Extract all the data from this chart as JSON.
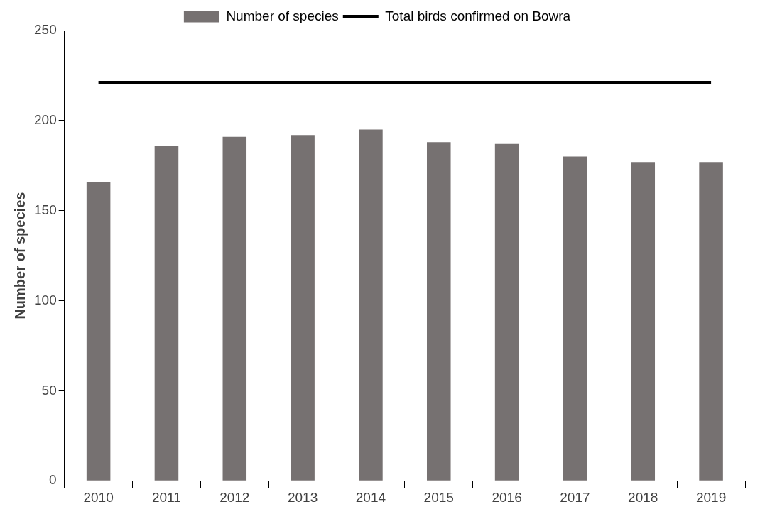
{
  "chart_data": {
    "type": "bar",
    "ylabel": "Number of species",
    "categories": [
      "2010",
      "2011",
      "2012",
      "2013",
      "2014",
      "2015",
      "2016",
      "2017",
      "2018",
      "2019"
    ],
    "series": [
      {
        "name": "Number of species",
        "color": "#767171",
        "values": [
          166,
          186,
          191,
          192,
          195,
          188,
          187,
          180,
          177,
          177
        ]
      },
      {
        "name": "Total birds confirmed on Bowra",
        "type": "line",
        "color": "#000000",
        "values": [
          221,
          221,
          221,
          221,
          221,
          221,
          221,
          221,
          221,
          221
        ]
      }
    ],
    "ylim": [
      0,
      250
    ],
    "yticks": [
      0,
      50,
      100,
      150,
      200,
      250
    ],
    "grid": false,
    "legend": "top",
    "marker": "none"
  }
}
